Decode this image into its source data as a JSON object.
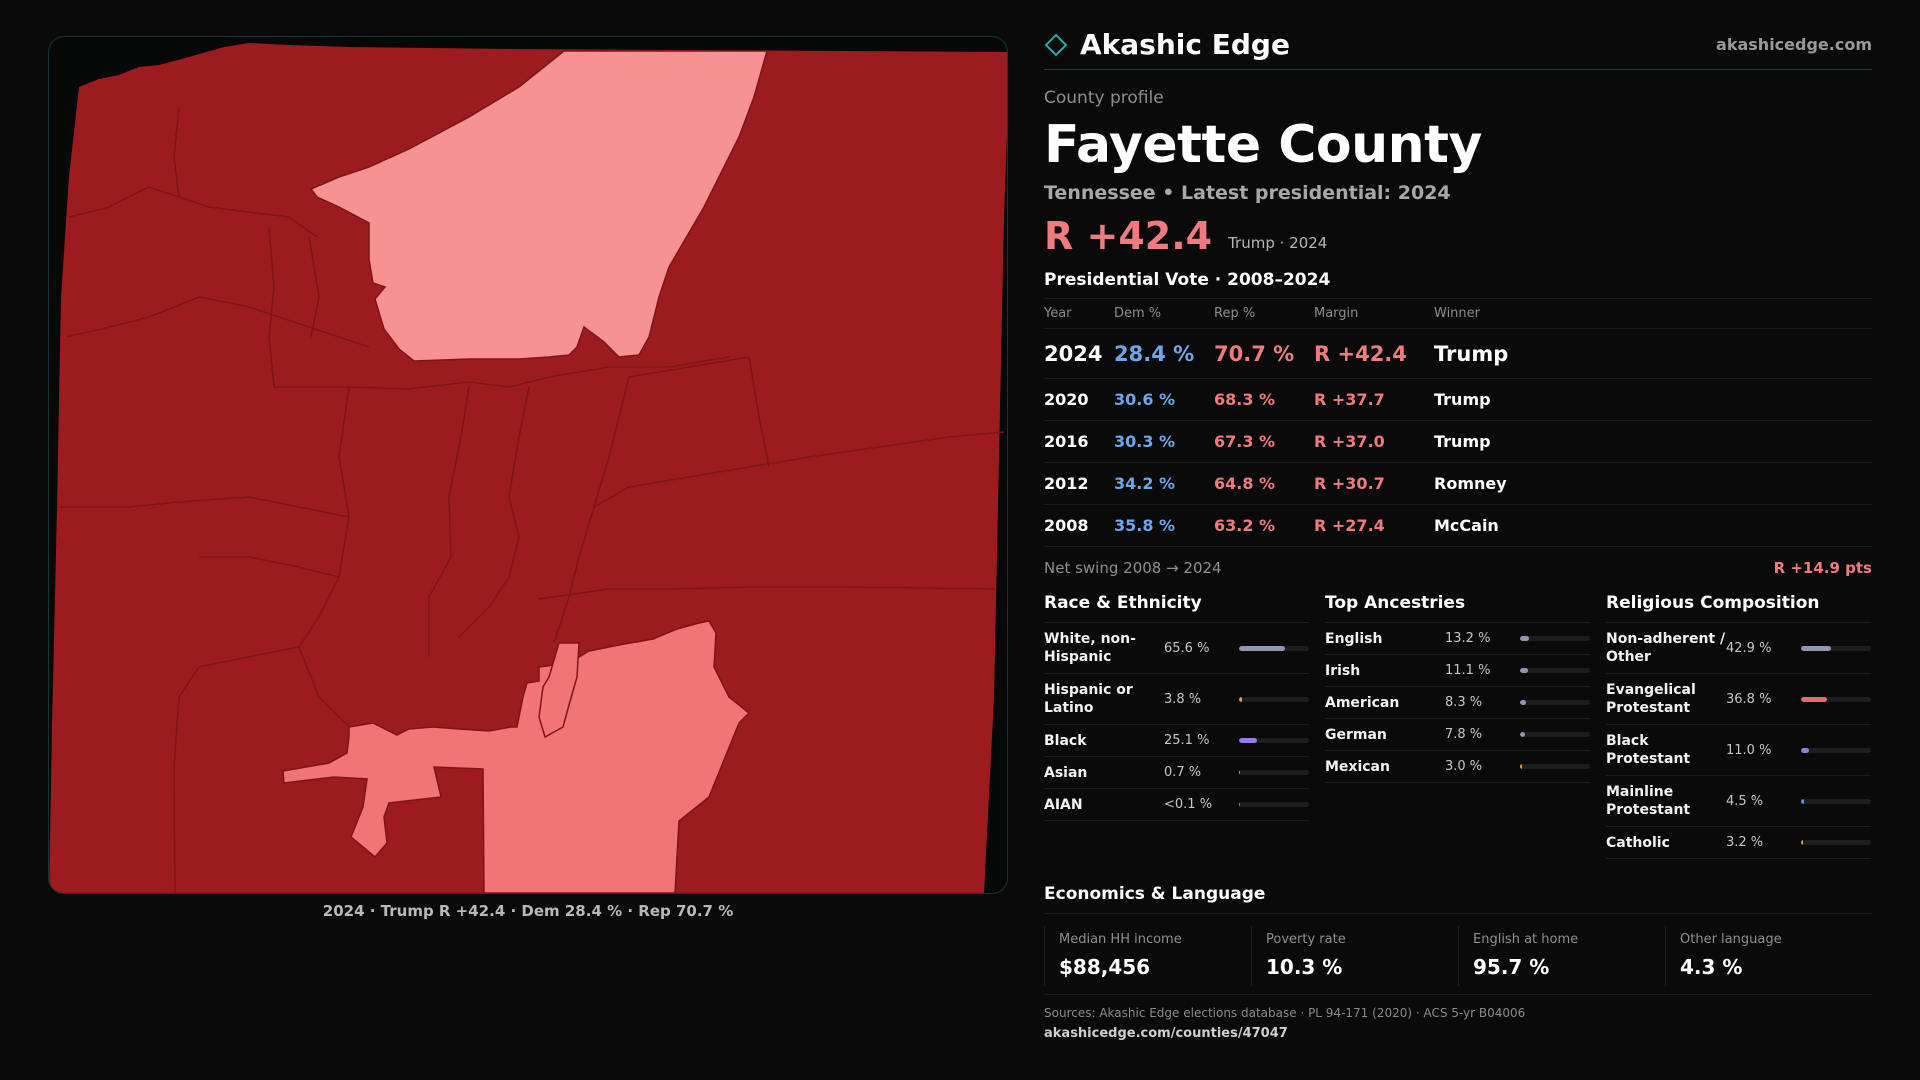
{
  "brand": {
    "name": "Akashic Edge",
    "url": "akashicedge.com"
  },
  "header": {
    "eyebrow": "County profile",
    "title": "Fayette County",
    "subtitle": "Tennessee • Latest presidential: 2024",
    "margin": "R +42.4",
    "margin_sub": "Trump · 2024"
  },
  "votes": {
    "title": "Presidential Vote · 2008–2024",
    "columns": [
      "Year",
      "Dem %",
      "Rep %",
      "Margin",
      "Winner"
    ],
    "rows": [
      {
        "year": "2024",
        "dem": "28.4 %",
        "rep": "70.7 %",
        "margin": "R +42.4",
        "winner": "Trump"
      },
      {
        "year": "2020",
        "dem": "30.6 %",
        "rep": "68.3 %",
        "margin": "R +37.7",
        "winner": "Trump"
      },
      {
        "year": "2016",
        "dem": "30.3 %",
        "rep": "67.3 %",
        "margin": "R +37.0",
        "winner": "Trump"
      },
      {
        "year": "2012",
        "dem": "34.2 %",
        "rep": "64.8 %",
        "margin": "R +30.7",
        "winner": "Romney"
      },
      {
        "year": "2008",
        "dem": "35.8 %",
        "rep": "63.2 %",
        "margin": "R +27.4",
        "winner": "McCain"
      }
    ],
    "swing_label": "Net swing 2008 → 2024",
    "swing_value": "R +14.9 pts"
  },
  "race": {
    "title": "Race & Ethnicity",
    "items": [
      {
        "label": "White, non-Hispanic",
        "value": "65.6 %",
        "pct": 65.6,
        "color": "#8f98ad"
      },
      {
        "label": "Hispanic or Latino",
        "value": "3.8 %",
        "pct": 3.8,
        "color": "#e3a33b"
      },
      {
        "label": "Black",
        "value": "25.1 %",
        "pct": 25.1,
        "color": "#9b7be0"
      },
      {
        "label": "Asian",
        "value": "0.7 %",
        "pct": 0.7,
        "color": "#53c4b6"
      },
      {
        "label": "AIAN",
        "value": "<0.1 %",
        "pct": 0.05,
        "color": "#c77d5f"
      }
    ]
  },
  "ancestry": {
    "title": "Top Ancestries",
    "items": [
      {
        "label": "English",
        "value": "13.2 %",
        "pct": 13.2,
        "color": "#8f98ad"
      },
      {
        "label": "Irish",
        "value": "11.1 %",
        "pct": 11.1,
        "color": "#8f98ad"
      },
      {
        "label": "American",
        "value": "8.3 %",
        "pct": 8.3,
        "color": "#8f98ad"
      },
      {
        "label": "German",
        "value": "7.8 %",
        "pct": 7.8,
        "color": "#8f98ad"
      },
      {
        "label": "Mexican",
        "value": "3.0 %",
        "pct": 3.0,
        "color": "#e3a33b"
      }
    ]
  },
  "religion": {
    "title": "Religious Composition",
    "items": [
      {
        "label": "Non-adherent / Other",
        "value": "42.9 %",
        "pct": 42.9,
        "color": "#8f98ad"
      },
      {
        "label": "Evangelical Protestant",
        "value": "36.8 %",
        "pct": 36.8,
        "color": "#e36b6f"
      },
      {
        "label": "Black Protestant",
        "value": "11.0 %",
        "pct": 11.0,
        "color": "#9b7be0"
      },
      {
        "label": "Mainline Protestant",
        "value": "4.5 %",
        "pct": 4.5,
        "color": "#5f8fe0"
      },
      {
        "label": "Catholic",
        "value": "3.2 %",
        "pct": 3.2,
        "color": "#e3a33b"
      }
    ]
  },
  "economics": {
    "title": "Economics & Language",
    "items": [
      {
        "label": "Median HH income",
        "value": "$88,456"
      },
      {
        "label": "Poverty rate",
        "value": "10.3 %"
      },
      {
        "label": "English at home",
        "value": "95.7 %"
      },
      {
        "label": "Other language",
        "value": "4.3 %"
      }
    ]
  },
  "map": {
    "caption": "2024 · Trump R +42.4 · Dem 28.4 % · Rep 70.7 %",
    "colors": {
      "strong_rep": "#9c1b1f",
      "lean_rep": "#f17577",
      "light_rep": "#f79293",
      "border": "#7e1417"
    }
  },
  "footer": {
    "sources": "Sources: Akashic Edge elections database · PL 94-171 (2020) · ACS 5-yr B04006",
    "link": "akashicedge.com/counties/47047"
  }
}
